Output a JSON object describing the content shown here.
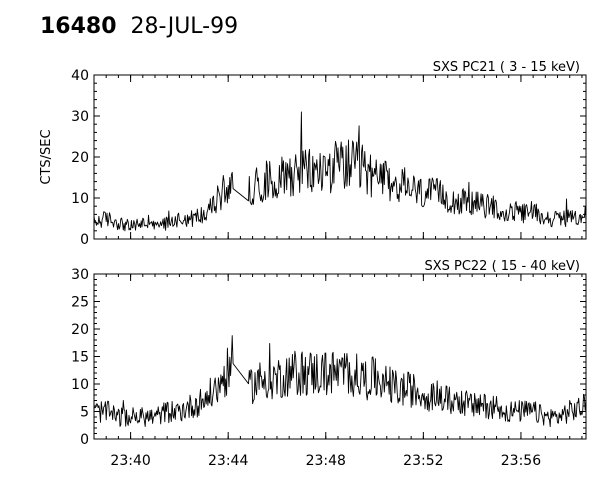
{
  "header": {
    "observation": "16480",
    "date": "28-JUL-99"
  },
  "chart_data": [
    {
      "type": "line",
      "title": "SXS PC21  (  3 - 15 keV)",
      "ylabel": "CTS/SEC",
      "xlabel": "",
      "xlim": [
        "23:38:30",
        "23:58:40"
      ],
      "ylim": [
        0,
        40
      ],
      "yticks": [
        0,
        10,
        20,
        30,
        40
      ],
      "xticks": [
        "23:40",
        "23:44",
        "23:48",
        "23:52",
        "23:56"
      ],
      "x_tick_labels_shown": false,
      "grid": false,
      "series": [
        {
          "x": [
            "23:38:30",
            "23:39:00",
            "23:39:30",
            "23:40:00",
            "23:40:30",
            "23:41:00",
            "23:41:30",
            "23:42:00",
            "23:42:30",
            "23:43:00",
            "23:43:30",
            "23:43:50",
            "23:44:10",
            "23:44:30",
            "23:44:40",
            "23:44:50",
            "23:45:00",
            "23:45:30",
            "23:46:00",
            "23:46:30",
            "23:47:00",
            "23:47:30",
            "23:48:00",
            "23:48:30",
            "23:49:00",
            "23:49:30",
            "23:50:00",
            "23:50:30",
            "23:51:00",
            "23:51:30",
            "23:52:00",
            "23:52:30",
            "23:53:00",
            "23:53:30",
            "23:54:00",
            "23:54:30",
            "23:55:00",
            "23:55:20",
            "23:55:40",
            "23:56:00",
            "23:56:30",
            "23:57:00",
            "23:57:30",
            "23:58:00",
            "23:58:40"
          ],
          "values": [
            4,
            5,
            4,
            3,
            4,
            3,
            4,
            5,
            5,
            6,
            9,
            12,
            13,
            6,
            5,
            11,
            13,
            14,
            15,
            16,
            17,
            16,
            17,
            18,
            18,
            17,
            15,
            14,
            13,
            12,
            11,
            11,
            10,
            9,
            9,
            8,
            8,
            5,
            7,
            6,
            7,
            5,
            5,
            5,
            6
          ]
        }
      ]
    },
    {
      "type": "line",
      "title": "SXS PC22  ( 15 - 40 keV)",
      "ylabel": "",
      "xlabel": "",
      "xlim": [
        "23:38:30",
        "23:58:40"
      ],
      "ylim": [
        0,
        30
      ],
      "yticks": [
        0,
        5,
        10,
        15,
        20,
        25,
        30
      ],
      "xticks": [
        "23:40",
        "23:44",
        "23:48",
        "23:52",
        "23:56"
      ],
      "x_tick_labels_shown": true,
      "grid": false,
      "series": [
        {
          "x": [
            "23:38:30",
            "23:39:00",
            "23:39:30",
            "23:40:00",
            "23:40:30",
            "23:41:00",
            "23:41:30",
            "23:42:00",
            "23:42:30",
            "23:43:00",
            "23:43:30",
            "23:43:50",
            "23:44:10",
            "23:44:30",
            "23:44:40",
            "23:44:50",
            "23:45:00",
            "23:45:30",
            "23:46:00",
            "23:46:30",
            "23:47:00",
            "23:47:30",
            "23:48:00",
            "23:48:30",
            "23:49:00",
            "23:49:30",
            "23:50:00",
            "23:50:30",
            "23:51:00",
            "23:51:30",
            "23:52:00",
            "23:52:30",
            "23:53:00",
            "23:53:30",
            "23:54:00",
            "23:54:30",
            "23:55:00",
            "23:55:20",
            "23:55:40",
            "23:56:00",
            "23:56:30",
            "23:57:00",
            "23:57:30",
            "23:58:00",
            "23:58:40"
          ],
          "values": [
            5,
            5,
            4,
            4,
            4,
            4,
            5,
            5,
            6,
            7,
            9,
            11,
            14,
            11,
            10,
            9,
            10,
            11,
            11,
            12,
            12,
            12,
            12,
            12,
            12,
            11,
            11,
            10,
            9,
            9,
            8,
            8,
            7,
            7,
            6,
            6,
            6,
            5,
            5,
            5,
            5,
            4,
            4,
            5,
            6
          ]
        }
      ]
    }
  ]
}
